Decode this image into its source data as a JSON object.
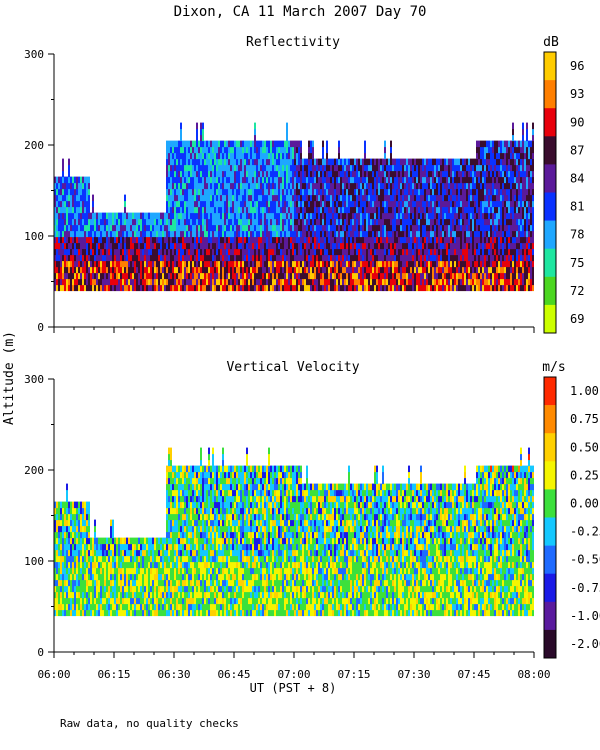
{
  "title": "Dixon, CA 11 March 2007  Day  70",
  "ylabel": "Altitude (m)",
  "xlabel": "UT  (PST + 8)",
  "footnote": "Raw data, no quality checks",
  "time_range_utc": [
    "06:00",
    "08:00"
  ],
  "x_ticks": [
    "06:00",
    "06:15",
    "06:30",
    "06:45",
    "07:00",
    "07:15",
    "07:30",
    "07:45",
    "08:00"
  ],
  "chart_data": [
    {
      "type": "heatmap",
      "title": "Reflectivity",
      "units": "dB",
      "xlabel": "UT  (PST + 8)",
      "ylabel": "Altitude (m)",
      "xlim_minutes": [
        0,
        120
      ],
      "ylim": [
        0,
        300
      ],
      "y_ticks": [
        "0",
        "100",
        "200",
        "300"
      ],
      "colorbar": {
        "labels": [
          "96",
          "93",
          "90",
          "87",
          "84",
          "81",
          "78",
          "75",
          "72",
          "69"
        ],
        "colors": [
          "#ffcc00",
          "#ff7f00",
          "#e8000b",
          "#3a0d2e",
          "#5b1a9a",
          "#0a32ff",
          "#1ea7ff",
          "#1ee6a0",
          "#4bd620",
          "#ccff00"
        ]
      },
      "altitude_coverage_m": {
        "echo_base": 40,
        "echo_top_by_time": [
          {
            "minutes": 0,
            "top": 160
          },
          {
            "minutes": 9,
            "top": 120
          },
          {
            "minutes": 24,
            "top": 120
          },
          {
            "minutes": 28,
            "top": 200
          },
          {
            "minutes": 60,
            "top": 200
          },
          {
            "minutes": 62,
            "top": 180
          },
          {
            "minutes": 105,
            "top": 180
          },
          {
            "minutes": 106,
            "top": 200
          },
          {
            "minutes": 118,
            "top": 200
          }
        ]
      },
      "features": [
        {
          "description": "strong low-level echo (87-96 dB) between 40 and 90 m",
          "minutes": [
            0,
            120
          ]
        },
        {
          "description": "light echo 75-81 dB aloft 100-200 m",
          "minutes": [
            25,
            60
          ]
        },
        {
          "description": "dark echo 84-87 dB 100-180 m",
          "minutes": [
            60,
            120
          ]
        }
      ]
    },
    {
      "type": "heatmap",
      "title": "Vertical Velocity",
      "units": "m/s",
      "xlabel": "UT  (PST + 8)",
      "ylabel": "Altitude (m)",
      "xlim_minutes": [
        0,
        120
      ],
      "ylim": [
        0,
        300
      ],
      "y_ticks": [
        "0",
        "100",
        "200",
        "300"
      ],
      "colorbar": {
        "labels": [
          "1.00",
          "0.75",
          "0.50",
          "0.25",
          "0.00",
          "-0.25",
          "-0.50",
          "-0.75",
          "-1.00",
          "-2.00"
        ],
        "colors": [
          "#ff2a00",
          "#ff8a00",
          "#ffd000",
          "#f5f500",
          "#3ce03c",
          "#14c8ff",
          "#1f6bff",
          "#1a1ae6",
          "#5a1a9e",
          "#2a0a2a"
        ]
      },
      "altitude_coverage_m": {
        "echo_base": 40,
        "echo_top_by_time": [
          {
            "minutes": 0,
            "top": 160
          },
          {
            "minutes": 9,
            "top": 120
          },
          {
            "minutes": 24,
            "top": 120
          },
          {
            "minutes": 28,
            "top": 200
          },
          {
            "minutes": 60,
            "top": 200
          },
          {
            "minutes": 62,
            "top": 180
          },
          {
            "minutes": 105,
            "top": 180
          },
          {
            "minutes": 106,
            "top": 200
          },
          {
            "minutes": 118,
            "top": 200
          }
        ]
      },
      "features": [
        {
          "description": "mostly -0.25 to 0.50 m/s with green/yellow dominance near 40-100 m",
          "minutes": [
            0,
            120
          ]
        },
        {
          "description": "isolated updraft streaks up to 1.00 m/s near 200-240 m",
          "minutes": [
            90,
            115
          ]
        }
      ]
    }
  ]
}
